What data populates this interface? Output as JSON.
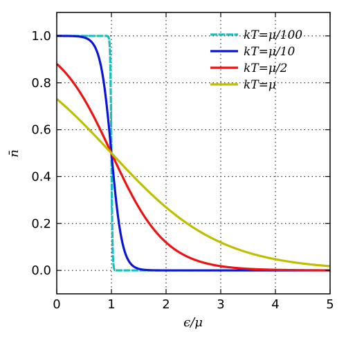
{
  "chart_data": {
    "type": "line",
    "xlabel": "ϵ/μ",
    "ylabel": "n̄",
    "xlim": [
      0,
      5
    ],
    "ylim": [
      -0.1,
      1.1
    ],
    "x_ticks": [
      "0",
      "1",
      "2",
      "3",
      "4",
      "5"
    ],
    "y_ticks": [
      "0.0",
      "0.2",
      "0.4",
      "0.6",
      "0.8",
      "1.0"
    ],
    "grid": true,
    "legend_position": "top-right",
    "series": [
      {
        "name": "kT=μ/100",
        "t": 0.01,
        "color": "#17bfbf",
        "dashed": true,
        "x_start": 0,
        "x_end": 5,
        "function": "1/(exp((x-1)/t)+1)"
      },
      {
        "name": "kT=μ/10",
        "t": 0.1,
        "color": "#0a14d8",
        "dashed": false,
        "x_start": 0,
        "x_end": 5,
        "function": "1/(exp((x-1)/t)+1)"
      },
      {
        "name": "kT=μ/2",
        "t": 0.5,
        "color": "#ee1111",
        "dashed": false,
        "x_start": 0,
        "x_end": 5,
        "function": "1/(exp((x-1)/t)+1)"
      },
      {
        "name": "kT=μ",
        "t": 1.0,
        "color": "#bfbf00",
        "dashed": false,
        "x_start": 0,
        "x_end": 5,
        "function": "1/(exp((x-1)/t)+1)"
      }
    ]
  }
}
